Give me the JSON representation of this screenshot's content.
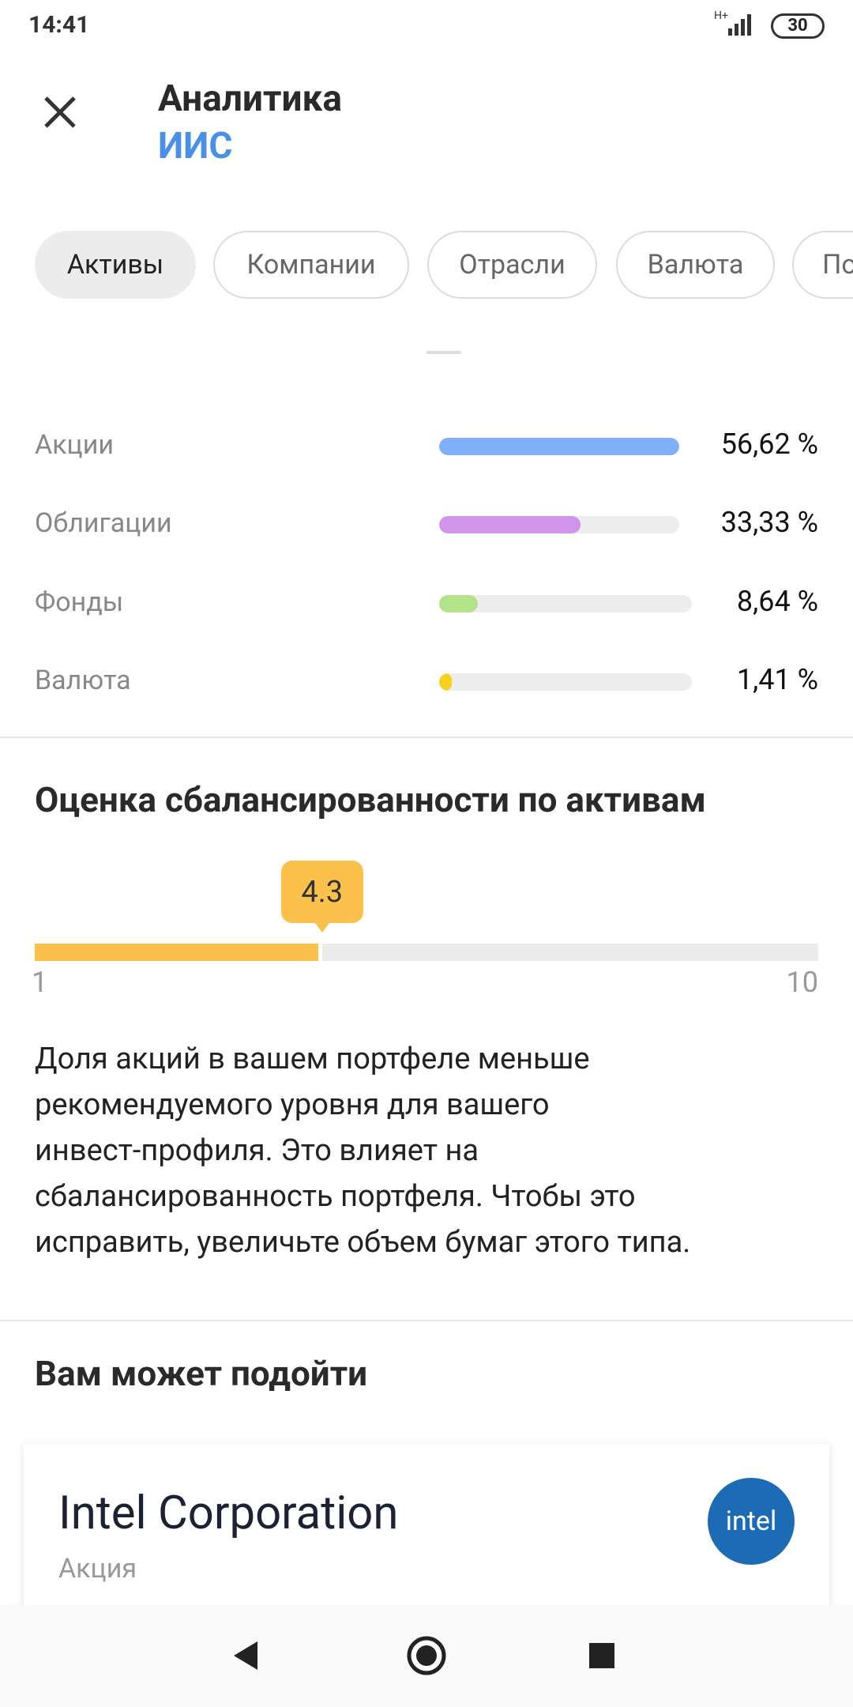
{
  "status_bar": {
    "time": "14:41",
    "network": "H+",
    "battery": "30"
  },
  "header": {
    "title": "Аналитика",
    "subtitle": "ИИС"
  },
  "tabs": [
    "Активы",
    "Компании",
    "Отрасли",
    "Валюта",
    "По"
  ],
  "allocation": [
    {
      "label": "Акции",
      "value": 56.62,
      "value_label": "56,62 %",
      "color": "#80b0f8"
    },
    {
      "label": "Облигации",
      "value": 33.33,
      "value_label": "33,33 %",
      "color": "#cf94ec"
    },
    {
      "label": "Фонды",
      "value": 8.64,
      "value_label": "8,64 %",
      "color": "#b4e48a"
    },
    {
      "label": "Валюта",
      "value": 1.41,
      "value_label": "1,41 %",
      "color": "#f6d21e"
    }
  ],
  "balance": {
    "title": "Оценка сбалансированности по активам",
    "score": 4.3,
    "min": 1,
    "max": 10,
    "text_lines": [
      "Доля акций в вашем портфеле меньше",
      "рекомендуемого уровня для вашего",
      "инвест-профиля. Это влияет на",
      "сбалансированность портфеля. Чтобы это",
      "исправить, увеличьте объем бумаг этого типа."
    ]
  },
  "suggestions": {
    "title": "Вам может подойти",
    "card": {
      "name": "Intel Corporation",
      "kind": "Акция",
      "logo": "intel"
    }
  }
}
